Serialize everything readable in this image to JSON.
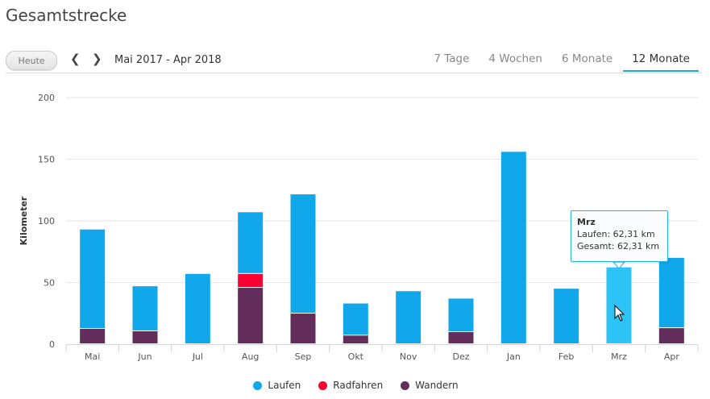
{
  "header": {
    "title": "Gesamtstrecke",
    "today_label": "Heute",
    "prev_icon": "chevron-left-icon",
    "next_icon": "chevron-right-icon",
    "prev_glyph": "❮",
    "next_glyph": "❯",
    "date_range": "Mai 2017 - Apr 2018",
    "tabs": [
      {
        "label": "7 Tage",
        "active": false
      },
      {
        "label": "4 Wochen",
        "active": false
      },
      {
        "label": "6 Monate",
        "active": false
      },
      {
        "label": "12 Monate",
        "active": true
      }
    ]
  },
  "tooltip": {
    "title": "Mrz",
    "line1": "Laufen: 62,31 km",
    "line2": "Gesamt: 62,31 km"
  },
  "chart_data": {
    "type": "bar",
    "stacked": true,
    "title": "Gesamtstrecke",
    "xlabel": "",
    "ylabel": "Kilometer",
    "ylim": [
      0,
      200
    ],
    "yticks": [
      0,
      50,
      100,
      150,
      200
    ],
    "grid": true,
    "legend_position": "bottom",
    "categories": [
      "Mai",
      "Jun",
      "Jul",
      "Aug",
      "Sep",
      "Okt",
      "Nov",
      "Dez",
      "Jan",
      "Feb",
      "Mrz",
      "Apr"
    ],
    "highlighted_category": "Mrz",
    "series": [
      {
        "name": "Wandern",
        "color": "#622d5a",
        "values": [
          12.4,
          10.5,
          0,
          45.7,
          24.8,
          7,
          0,
          9.8,
          0,
          0,
          0,
          13
        ]
      },
      {
        "name": "Radfahren",
        "color": "#ff0033",
        "values": [
          0,
          0,
          0,
          11.3,
          0,
          0,
          0,
          0,
          0,
          0,
          0,
          0
        ]
      },
      {
        "name": "Laufen",
        "color": "#11a8eb",
        "values": [
          80.6,
          36.5,
          57,
          50,
          96.7,
          26,
          43,
          27.2,
          156,
          45,
          62.31,
          57
        ]
      }
    ],
    "legend": [
      {
        "name": "Laufen",
        "color": "#11a8eb"
      },
      {
        "name": "Radfahren",
        "color": "#ff0033"
      },
      {
        "name": "Wandern",
        "color": "#622d5a"
      }
    ]
  }
}
